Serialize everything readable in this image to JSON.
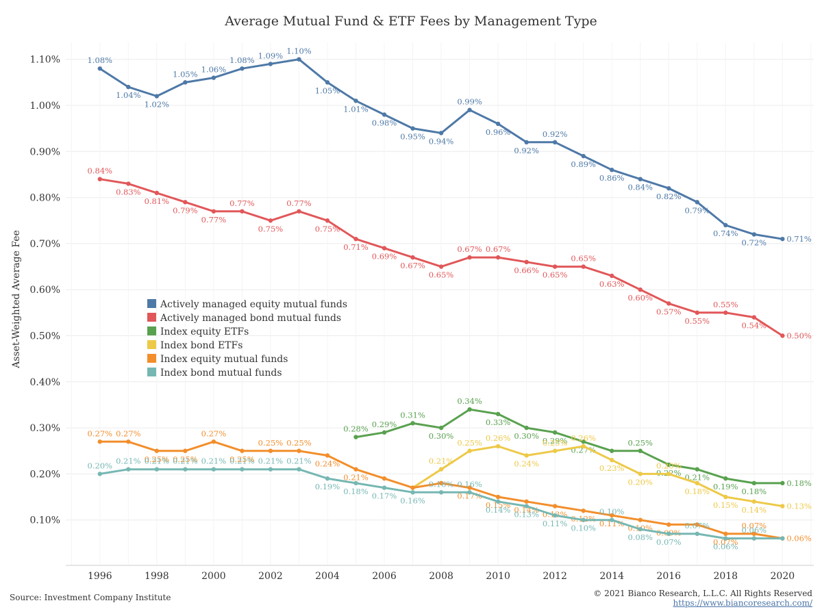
{
  "chart_data": {
    "type": "line",
    "title": "Average Mutual Fund & ETF Fees by Management Type",
    "ylabel": "Asset-Weighted Average Fee",
    "xlabel": "",
    "ylim": [
      0.0,
      1.14
    ],
    "xlim": [
      1994.8,
      2021.1
    ],
    "yticks": [
      0.1,
      0.2,
      0.3,
      0.4,
      0.5,
      0.6,
      0.7,
      0.8,
      0.9,
      1.0,
      1.1
    ],
    "yticklabels": [
      "0.10%",
      "0.20%",
      "0.30%",
      "0.40%",
      "0.50%",
      "0.60%",
      "0.70%",
      "0.80%",
      "0.90%",
      "1.00%",
      "1.10%"
    ],
    "xticks": [
      1996,
      1998,
      2000,
      2002,
      2004,
      2006,
      2008,
      2010,
      2012,
      2014,
      2016,
      2018,
      2020
    ],
    "grid": true,
    "legend_position": "center-left",
    "series": [
      {
        "name": "Actively managed equity mutual funds",
        "color": "#4e79a7",
        "x": [
          1996,
          1997,
          1998,
          1999,
          2000,
          2001,
          2002,
          2003,
          2004,
          2005,
          2006,
          2007,
          2008,
          2009,
          2010,
          2011,
          2012,
          2013,
          2014,
          2015,
          2016,
          2017,
          2018,
          2019,
          2020
        ],
        "values": [
          1.08,
          1.04,
          1.02,
          1.05,
          1.06,
          1.08,
          1.09,
          1.1,
          1.05,
          1.01,
          0.98,
          0.95,
          0.94,
          0.99,
          0.96,
          0.92,
          0.92,
          0.89,
          0.86,
          0.84,
          0.82,
          0.79,
          0.74,
          0.72,
          0.71
        ],
        "labels": [
          "1.08%",
          "1.04%",
          "1.02%",
          "1.05%",
          "1.06%",
          "1.08%",
          "1.09%",
          "1.10%",
          "1.05%",
          "1.01%",
          "0.98%",
          "0.95%",
          "0.94%",
          "0.99%",
          "0.96%",
          "0.92%",
          "0.92%",
          "0.89%",
          "0.86%",
          "0.84%",
          "0.82%",
          "0.79%",
          "0.74%",
          "0.72%",
          "0.71%"
        ]
      },
      {
        "name": "Actively managed bond mutual funds",
        "color": "#e15759",
        "x": [
          1996,
          1997,
          1998,
          1999,
          2000,
          2001,
          2002,
          2003,
          2004,
          2005,
          2006,
          2007,
          2008,
          2009,
          2010,
          2011,
          2012,
          2013,
          2014,
          2015,
          2016,
          2017,
          2018,
          2019,
          2020
        ],
        "values": [
          0.84,
          0.83,
          0.81,
          0.79,
          0.77,
          0.77,
          0.75,
          0.77,
          0.75,
          0.71,
          0.69,
          0.67,
          0.65,
          0.67,
          0.67,
          0.66,
          0.65,
          0.65,
          0.63,
          0.6,
          0.57,
          0.55,
          0.55,
          0.54,
          0.5
        ],
        "labels": [
          "0.84%",
          "0.83%",
          "0.81%",
          "0.79%",
          "0.77%",
          "0.77%",
          "0.75%",
          "0.77%",
          "0.75%",
          "0.71%",
          "0.69%",
          "0.67%",
          "0.65%",
          "0.67%",
          "0.67%",
          "0.66%",
          "0.65%",
          "0.65%",
          "0.63%",
          "0.60%",
          "0.57%",
          "0.55%",
          "0.55%",
          "0.54%",
          "0.50%"
        ]
      },
      {
        "name": "Index equity ETFs",
        "color": "#59a14f",
        "x": [
          2005,
          2006,
          2007,
          2008,
          2009,
          2010,
          2011,
          2012,
          2013,
          2014,
          2015,
          2016,
          2017,
          2018,
          2019,
          2020
        ],
        "values": [
          0.28,
          0.29,
          0.31,
          0.3,
          0.34,
          0.33,
          0.3,
          0.29,
          0.27,
          0.25,
          0.25,
          0.22,
          0.21,
          0.19,
          0.18,
          0.18
        ],
        "labels": [
          "0.28%",
          "0.29%",
          "0.31%",
          "0.30%",
          "0.34%",
          "0.33%",
          "0.30%",
          "0.29%",
          "0.27%",
          "",
          "0.25%",
          "0.22%",
          "0.21%",
          "0.19%",
          "0.18%",
          "0.18%"
        ]
      },
      {
        "name": "Index bond ETFs",
        "color": "#edc948",
        "x": [
          2007,
          2008,
          2009,
          2010,
          2011,
          2012,
          2013,
          2014,
          2015,
          2016,
          2017,
          2018,
          2019,
          2020
        ],
        "values": [
          0.17,
          0.21,
          0.25,
          0.26,
          0.24,
          0.25,
          0.26,
          0.23,
          0.2,
          0.2,
          0.18,
          0.15,
          0.14,
          0.13
        ],
        "labels": [
          "",
          "0.21%",
          "0.25%",
          "0.26%",
          "0.24%",
          "0.25%",
          "0.26%",
          "0.23%",
          "0.20%",
          "0.20%",
          "0.18%",
          "0.15%",
          "0.14%",
          "0.13%"
        ]
      },
      {
        "name": "Index equity mutual funds",
        "color": "#f28e2b",
        "x": [
          1996,
          1997,
          1998,
          1999,
          2000,
          2001,
          2002,
          2003,
          2004,
          2005,
          2006,
          2007,
          2008,
          2009,
          2010,
          2011,
          2012,
          2013,
          2014,
          2015,
          2016,
          2017,
          2018,
          2019,
          2020
        ],
        "values": [
          0.27,
          0.27,
          0.25,
          0.25,
          0.27,
          0.25,
          0.25,
          0.25,
          0.24,
          0.21,
          0.19,
          0.17,
          0.18,
          0.17,
          0.15,
          0.14,
          0.13,
          0.12,
          0.11,
          0.1,
          0.09,
          0.09,
          0.07,
          0.07,
          0.06
        ],
        "labels": [
          "0.27%",
          "0.27%",
          "0.25%",
          "0.25%",
          "0.27%",
          "0.25%",
          "0.25%",
          "0.25%",
          "0.24%",
          "0.21%",
          "",
          "",
          "",
          "0.17%",
          "0.15%",
          "0.14%",
          "0.13%",
          "0.12%",
          "0.11%",
          "0.10%",
          "0.09%",
          "",
          "0.07%",
          "0.07%",
          "0.06%"
        ]
      },
      {
        "name": "Index bond mutual funds",
        "color": "#76b7b2",
        "x": [
          1996,
          1997,
          1998,
          1999,
          2000,
          2001,
          2002,
          2003,
          2004,
          2005,
          2006,
          2007,
          2008,
          2009,
          2010,
          2011,
          2012,
          2013,
          2014,
          2015,
          2016,
          2017,
          2018,
          2019,
          2020
        ],
        "values": [
          0.2,
          0.21,
          0.21,
          0.21,
          0.21,
          0.21,
          0.21,
          0.21,
          0.19,
          0.18,
          0.17,
          0.16,
          0.16,
          0.16,
          0.14,
          0.13,
          0.11,
          0.1,
          0.1,
          0.08,
          0.07,
          0.07,
          0.06,
          0.06,
          0.06
        ],
        "labels": [
          "0.20%",
          "0.21%",
          "0.21%",
          "0.21%",
          "0.21%",
          "0.21%",
          "0.21%",
          "0.21%",
          "0.19%",
          "0.18%",
          "0.17%",
          "0.16%",
          "0.16%",
          "0.16%",
          "0.14%",
          "0.13%",
          "0.11%",
          "0.10%",
          "0.10%",
          "0.08%",
          "0.07%",
          "0.07%",
          "0.06%",
          "0.06%",
          ""
        ]
      }
    ]
  },
  "footer": {
    "source": "Source: Investment Company Institute",
    "copyright": "© 2021 Bianco Research, L.L.C. All Rights Reserved",
    "url": "https://www.biancoresearch.com/"
  }
}
